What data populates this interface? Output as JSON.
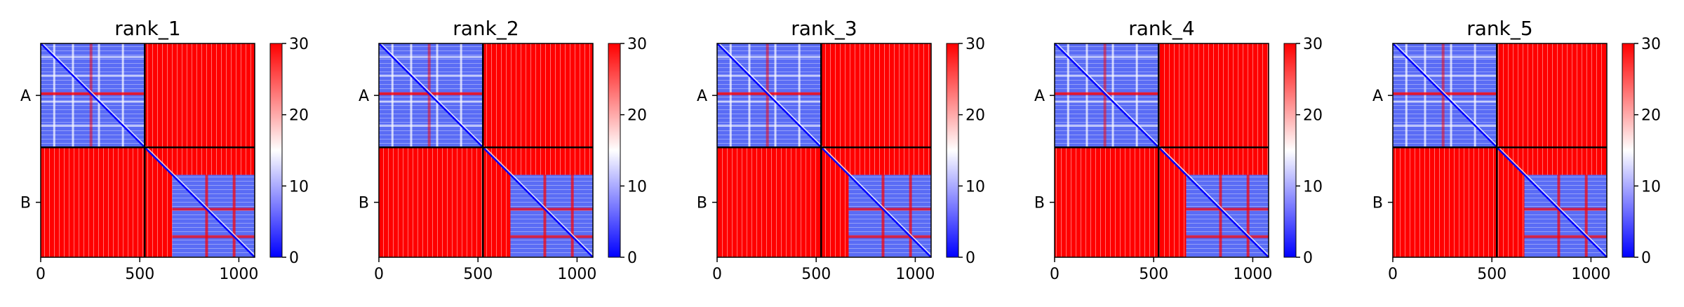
{
  "figure": {
    "background": "#ffffff"
  },
  "colormap": {
    "name": "bwr",
    "low": "#0000ff",
    "mid": "#ffffff",
    "high": "#ff0000"
  },
  "chart_data": [
    {
      "type": "heatmap",
      "title": "rank_1",
      "x_ticks": [
        0,
        500,
        1000
      ],
      "xlim": [
        0,
        1080
      ],
      "chains": [
        {
          "label": "A",
          "start": 0,
          "end": 525
        },
        {
          "label": "B",
          "start": 525,
          "end": 1080
        }
      ],
      "colorbar": {
        "ticks": [
          0,
          10,
          20,
          30
        ],
        "range": [
          0,
          30
        ]
      }
    },
    {
      "type": "heatmap",
      "title": "rank_2",
      "x_ticks": [
        0,
        500,
        1000
      ],
      "xlim": [
        0,
        1080
      ],
      "chains": [
        {
          "label": "A",
          "start": 0,
          "end": 525
        },
        {
          "label": "B",
          "start": 525,
          "end": 1080
        }
      ],
      "colorbar": {
        "ticks": [
          0,
          10,
          20,
          30
        ],
        "range": [
          0,
          30
        ]
      }
    },
    {
      "type": "heatmap",
      "title": "rank_3",
      "x_ticks": [
        0,
        500,
        1000
      ],
      "xlim": [
        0,
        1080
      ],
      "chains": [
        {
          "label": "A",
          "start": 0,
          "end": 525
        },
        {
          "label": "B",
          "start": 525,
          "end": 1080
        }
      ],
      "colorbar": {
        "ticks": [
          0,
          10,
          20,
          30
        ],
        "range": [
          0,
          30
        ]
      }
    },
    {
      "type": "heatmap",
      "title": "rank_4",
      "x_ticks": [
        0,
        500,
        1000
      ],
      "xlim": [
        0,
        1080
      ],
      "chains": [
        {
          "label": "A",
          "start": 0,
          "end": 525
        },
        {
          "label": "B",
          "start": 525,
          "end": 1080
        }
      ],
      "colorbar": {
        "ticks": [
          0,
          10,
          20,
          30
        ],
        "range": [
          0,
          30
        ]
      }
    },
    {
      "type": "heatmap",
      "title": "rank_5",
      "x_ticks": [
        0,
        500,
        1000
      ],
      "xlim": [
        0,
        1080
      ],
      "chains": [
        {
          "label": "A",
          "start": 0,
          "end": 525
        },
        {
          "label": "B",
          "start": 525,
          "end": 1080
        }
      ],
      "colorbar": {
        "ticks": [
          0,
          10,
          20,
          30
        ],
        "range": [
          0,
          30
        ]
      }
    }
  ]
}
